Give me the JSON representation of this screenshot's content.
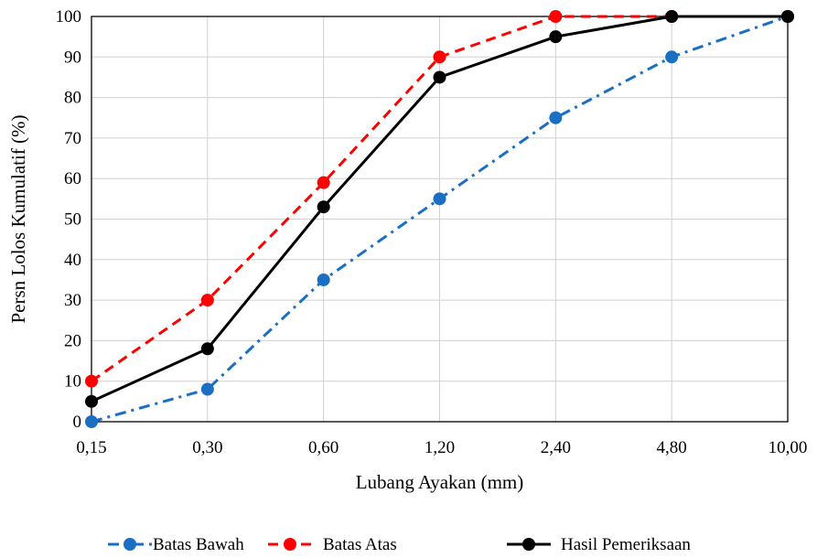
{
  "chart_data": {
    "type": "line",
    "categories": [
      "0,15",
      "0,30",
      "0,60",
      "1,20",
      "2,40",
      "4,80",
      "10,00"
    ],
    "xlabel": "Lubang Ayakan (mm)",
    "ylabel": "Persn Lolos Kumulatif (%)",
    "ylim": [
      0,
      100
    ],
    "yticks": [
      "0",
      "10",
      "20",
      "30",
      "40",
      "50",
      "60",
      "70",
      "80",
      "90",
      "100"
    ],
    "grid": true,
    "legend_position": "bottom",
    "series": [
      {
        "name": "Batas Bawah",
        "values": [
          0,
          8,
          35,
          55,
          75,
          90,
          100
        ],
        "color": "#1a6fc2",
        "line_style": "dash-dot",
        "marker": "circle"
      },
      {
        "name": "Batas Atas",
        "values": [
          10,
          30,
          59,
          90,
          100,
          100,
          100
        ],
        "color": "#ff0000",
        "line_style": "dashed",
        "marker": "circle"
      },
      {
        "name": "Hasil Pemeriksaan",
        "values": [
          5,
          18,
          53,
          85,
          95,
          100,
          100
        ],
        "color": "#000000",
        "line_style": "solid",
        "marker": "circle"
      }
    ]
  }
}
